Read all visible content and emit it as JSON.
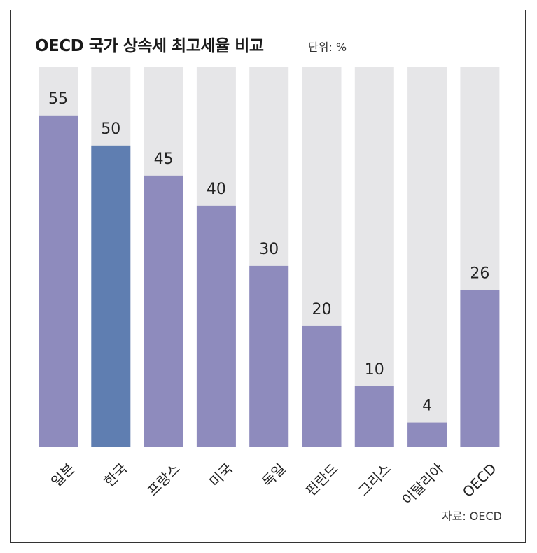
{
  "chart_data": {
    "type": "bar",
    "title": "OECD 국가 상속세 최고세율 비교",
    "unit_label": "단위: %",
    "source": "자료: OECD",
    "categories": [
      "일본",
      "한국",
      "프랑스",
      "미국",
      "독일",
      "핀란드",
      "그리스",
      "이탈리아",
      "OECD"
    ],
    "values": [
      55,
      50,
      45,
      40,
      30,
      20,
      10,
      4,
      26
    ],
    "ylim": [
      0,
      63
    ],
    "highlight_index": 1,
    "colors": {
      "bar": "#8e8bbd",
      "highlight": "#5f7eb1",
      "track": "#e6e6e8"
    }
  }
}
